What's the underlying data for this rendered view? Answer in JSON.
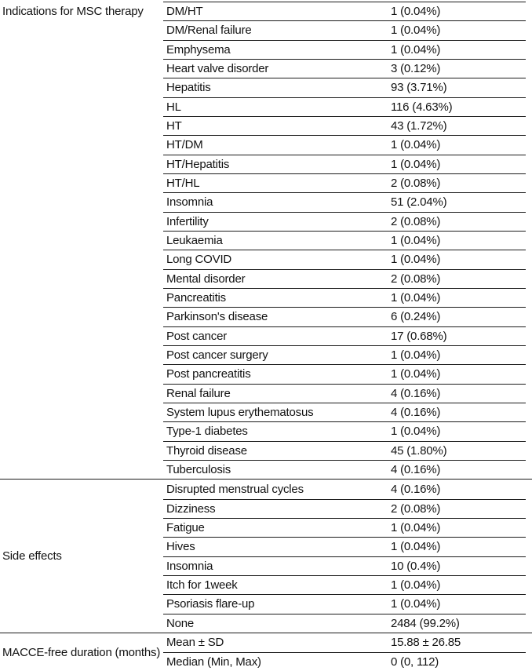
{
  "table": {
    "colors": {
      "text": "#121212",
      "rule": "#1b1b1b",
      "background": "#ffffff"
    },
    "sections": [
      {
        "label": "Indications for MSC therapy",
        "label_align": "top",
        "rows": [
          {
            "name": "DM/HT",
            "value": "1 (0.04%)"
          },
          {
            "name": "DM/Renal failure",
            "value": "1 (0.04%)"
          },
          {
            "name": "Emphysema",
            "value": "1 (0.04%)"
          },
          {
            "name": "Heart valve disorder",
            "value": "3 (0.12%)"
          },
          {
            "name": "Hepatitis",
            "value": "93 (3.71%)"
          },
          {
            "name": "HL",
            "value": "116 (4.63%)"
          },
          {
            "name": "HT",
            "value": "43 (1.72%)"
          },
          {
            "name": "HT/DM",
            "value": "1 (0.04%)"
          },
          {
            "name": "HT/Hepatitis",
            "value": "1 (0.04%)"
          },
          {
            "name": "HT/HL",
            "value": "2 (0.08%)"
          },
          {
            "name": "Insomnia",
            "value": "51 (2.04%)"
          },
          {
            "name": "Infertility",
            "value": "2 (0.08%)"
          },
          {
            "name": "Leukaemia",
            "value": "1 (0.04%)"
          },
          {
            "name": "Long COVID",
            "value": "1 (0.04%)"
          },
          {
            "name": "Mental disorder",
            "value": "2 (0.08%)"
          },
          {
            "name": "Pancreatitis",
            "value": "1 (0.04%)"
          },
          {
            "name": "Parkinson's disease",
            "value": "6 (0.24%)"
          },
          {
            "name": "Post cancer",
            "value": "17 (0.68%)"
          },
          {
            "name": "Post cancer surgery",
            "value": "1 (0.04%)"
          },
          {
            "name": "Post pancreatitis",
            "value": "1 (0.04%)"
          },
          {
            "name": "Renal failure",
            "value": "4 (0.16%)"
          },
          {
            "name": "System lupus erythematosus",
            "value": "4 (0.16%)"
          },
          {
            "name": "Type-1 diabetes",
            "value": "1 (0.04%)"
          },
          {
            "name": "Thyroid disease",
            "value": "45 (1.80%)"
          },
          {
            "name": "Tuberculosis",
            "value": "4 (0.16%)"
          }
        ]
      },
      {
        "label": "Side effects",
        "label_align": "middle",
        "rows": [
          {
            "name": "Disrupted menstrual cycles",
            "value": "4 (0.16%)"
          },
          {
            "name": "Dizziness",
            "value": "2 (0.08%)"
          },
          {
            "name": "Fatigue",
            "value": "1 (0.04%)"
          },
          {
            "name": "Hives",
            "value": "1 (0.04%)"
          },
          {
            "name": "Insomnia",
            "value": "10 (0.4%)"
          },
          {
            "name": "Itch for 1week",
            "value": "1 (0.04%)"
          },
          {
            "name": "Psoriasis flare-up",
            "value": "1 (0.04%)"
          },
          {
            "name": "None",
            "value": "2484 (99.2%)"
          }
        ]
      },
      {
        "label": "MACCE-free duration (months)",
        "label_align": "middle",
        "rows": [
          {
            "name": "Mean ± SD",
            "value": "15.88 ± 26.85"
          },
          {
            "name": "Median (Min, Max)",
            "value": "0 (0, 112)"
          }
        ]
      }
    ]
  }
}
